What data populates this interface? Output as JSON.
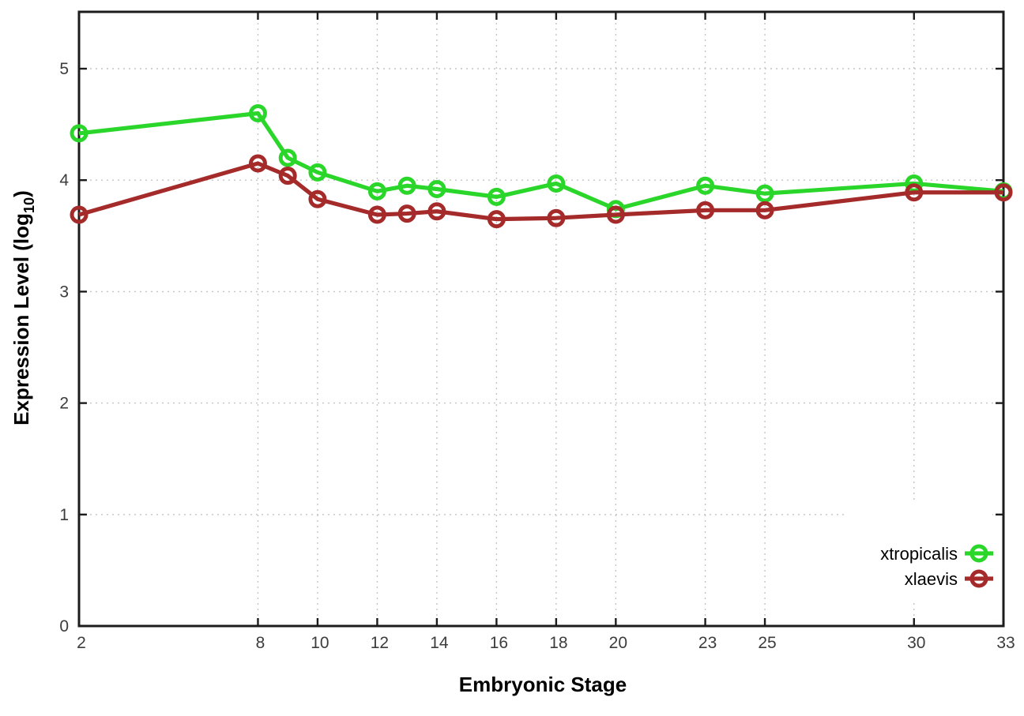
{
  "chart_data": {
    "type": "line",
    "title": "",
    "xlabel": "Embryonic Stage",
    "ylabel": "Expression Level (log10)",
    "ylabel_parts": {
      "main": "Expression Level (log",
      "sub": "10",
      "suffix": ")"
    },
    "x": [
      2,
      8,
      9,
      10,
      12,
      13,
      14,
      16,
      18,
      20,
      23,
      25,
      30,
      33
    ],
    "series": [
      {
        "name": "xtropicalis",
        "color": "#2ad62a",
        "values": [
          4.42,
          4.6,
          4.2,
          4.07,
          3.9,
          3.95,
          3.92,
          3.85,
          3.97,
          3.74,
          3.95,
          3.88,
          3.97,
          3.9
        ]
      },
      {
        "name": "xlaevis",
        "color": "#a52a2a",
        "values": [
          3.69,
          4.15,
          4.04,
          3.83,
          3.69,
          3.7,
          3.72,
          3.65,
          3.66,
          3.69,
          3.73,
          3.73,
          3.89,
          3.89
        ]
      }
    ],
    "xlim": [
      2,
      33
    ],
    "ylim": [
      0,
      5.51
    ],
    "xticks": [
      2,
      8,
      10,
      12,
      14,
      16,
      18,
      20,
      23,
      25,
      30,
      33
    ],
    "yticks": [
      0,
      1,
      2,
      3,
      4,
      5
    ],
    "grid": true,
    "grid_style": "dotted",
    "legend_position": "right-lower",
    "colors": {
      "background": "#ffffff",
      "axis": "#1c1c1c",
      "grid": "#c4c4c4",
      "tick_label": "#3c3c3c",
      "axis_title": "#000000"
    }
  }
}
